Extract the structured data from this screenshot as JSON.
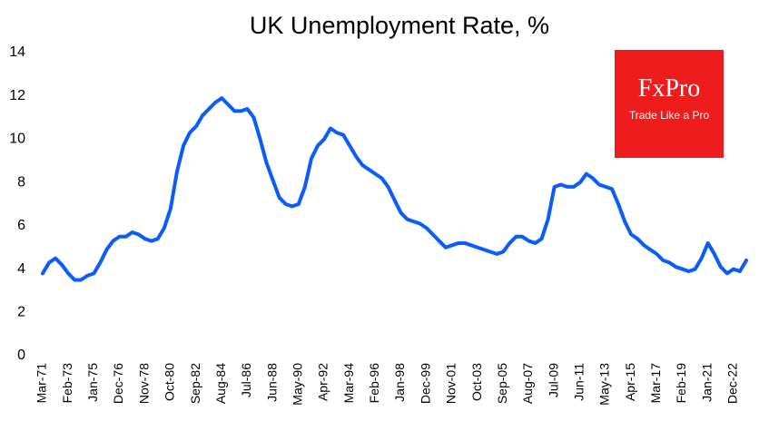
{
  "chart_data": {
    "type": "line",
    "title": "UK Unemployment  Rate, %",
    "logo": "FxPro",
    "logo_tagline": "Trade Like a Pro",
    "color": "#0a5cff",
    "ylim": [
      0,
      14
    ],
    "yticks": [
      0,
      2,
      4,
      6,
      8,
      10,
      12,
      14
    ],
    "categories": [
      "Mar-71",
      null,
      null,
      null,
      "Feb-73",
      null,
      null,
      null,
      "Jan-75",
      null,
      null,
      null,
      "Dec-76",
      null,
      null,
      null,
      "Nov-78",
      null,
      null,
      null,
      "Oct-80",
      null,
      null,
      null,
      "Sep-82",
      null,
      null,
      null,
      "Aug-84",
      null,
      null,
      null,
      "Jul-86",
      null,
      null,
      null,
      "Jun-88",
      null,
      null,
      null,
      "May-90",
      null,
      null,
      null,
      "Apr-92",
      null,
      null,
      null,
      "Mar-94",
      null,
      null,
      null,
      "Feb-96",
      null,
      null,
      null,
      "Jan-98",
      null,
      null,
      null,
      "Dec-99",
      null,
      null,
      null,
      "Nov-01",
      null,
      null,
      null,
      "Oct-03",
      null,
      null,
      null,
      "Sep-05",
      null,
      null,
      null,
      "Aug-07",
      null,
      null,
      null,
      "Jul-09",
      null,
      null,
      null,
      "Jun-11",
      null,
      null,
      null,
      "May-13",
      null,
      null,
      null,
      "Apr-15",
      null,
      null,
      null,
      "Mar-17",
      null,
      null,
      null,
      "Feb-19",
      null,
      null,
      null,
      "Jan-21",
      null,
      null,
      null,
      "Dec-22",
      null,
      null
    ],
    "values": [
      3.8,
      4.3,
      4.5,
      4.2,
      3.8,
      3.5,
      3.5,
      3.7,
      3.8,
      4.3,
      4.9,
      5.3,
      5.5,
      5.5,
      5.7,
      5.6,
      5.4,
      5.3,
      5.4,
      5.9,
      6.8,
      8.5,
      9.7,
      10.3,
      10.6,
      11.1,
      11.4,
      11.7,
      11.9,
      11.6,
      11.3,
      11.3,
      11.4,
      11.0,
      10.0,
      8.9,
      8.1,
      7.3,
      7.0,
      6.9,
      7.0,
      7.8,
      9.1,
      9.7,
      10.0,
      10.5,
      10.3,
      10.2,
      9.7,
      9.2,
      8.8,
      8.6,
      8.4,
      8.2,
      7.8,
      7.2,
      6.6,
      6.3,
      6.2,
      6.1,
      5.9,
      5.6,
      5.3,
      5.0,
      5.1,
      5.2,
      5.2,
      5.1,
      5.0,
      4.9,
      4.8,
      4.7,
      4.8,
      5.2,
      5.5,
      5.5,
      5.3,
      5.2,
      5.4,
      6.3,
      7.8,
      7.9,
      7.8,
      7.8,
      8.0,
      8.4,
      8.2,
      7.9,
      7.8,
      7.7,
      7.0,
      6.2,
      5.6,
      5.4,
      5.1,
      4.9,
      4.7,
      4.4,
      4.3,
      4.1,
      4.0,
      3.9,
      4.0,
      4.5,
      5.2,
      4.7,
      4.1,
      3.8,
      4.0,
      3.9,
      4.4
    ]
  }
}
